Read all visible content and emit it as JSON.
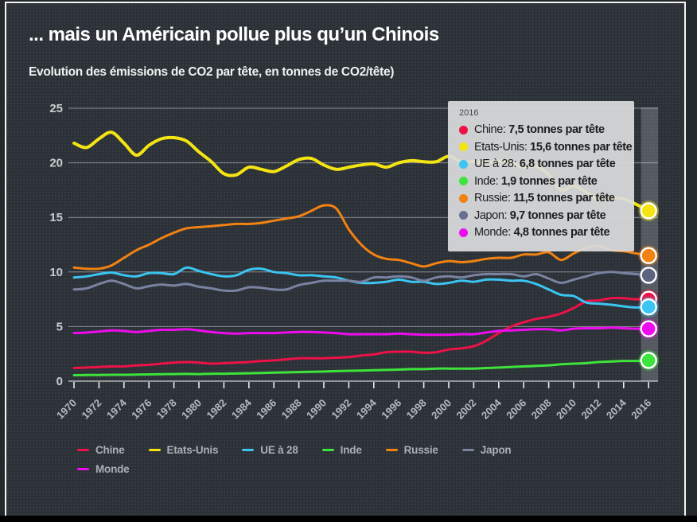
{
  "header": {
    "title": "... mais un Américain pollue plus qu’un Chinois",
    "subtitle": "Evolution des émissions de CO2 par tête, en tonnes de CO2/tête)"
  },
  "tooltip": {
    "year": "2016",
    "rows": [
      {
        "label": "Chine",
        "value": "7,5 tonnes par tête",
        "color": "#ed1247"
      },
      {
        "label": "Etats-Unis",
        "value": "15,6 tonnes par tête",
        "color": "#f4e412"
      },
      {
        "label": "UE à 28",
        "value": "6,8 tonnes par tête",
        "color": "#3ac5f2"
      },
      {
        "label": "Inde",
        "value": "1,9 tonnes par tête",
        "color": "#3ee33c"
      },
      {
        "label": "Russie",
        "value": "11,5 tonnes par tête",
        "color": "#f28211"
      },
      {
        "label": "Japon",
        "value": "9,7 tonnes par tête",
        "color": "#677091"
      },
      {
        "label": "Monde",
        "value": "4,8 tonnes par tête",
        "color": "#ee0cee"
      }
    ]
  },
  "legend": {
    "items": [
      {
        "label": "Chine",
        "color": "#ed1247"
      },
      {
        "label": "Etats-Unis",
        "color": "#f4e412"
      },
      {
        "label": "UE à 28",
        "color": "#3ac5f2"
      },
      {
        "label": "Inde",
        "color": "#3ee33c"
      },
      {
        "label": "Russie",
        "color": "#f28211"
      },
      {
        "label": "Japon",
        "color": "#7a82a2"
      },
      {
        "label": "Monde",
        "color": "#ee0cee"
      }
    ]
  },
  "chart_data": {
    "type": "line",
    "title": "Evolution des émissions de CO2 par tête",
    "xlabel": "",
    "ylabel": "tonnes de CO2/tête",
    "x_min": 1970,
    "x_max": 2016,
    "x_ticks": [
      1970,
      1972,
      1974,
      1976,
      1978,
      1980,
      1982,
      1984,
      1986,
      1988,
      1990,
      1992,
      1994,
      1996,
      1998,
      2000,
      2002,
      2004,
      2006,
      2008,
      2010,
      2012,
      2014,
      2016
    ],
    "y_ticks": [
      0,
      5,
      10,
      15,
      20,
      25
    ],
    "ylim": [
      0,
      25
    ],
    "grid": true,
    "legend_position": "bottom",
    "highlight_year": 2016,
    "series": [
      {
        "name": "Chine",
        "color": "#ed1247",
        "width": 3,
        "values": [
          1.2,
          1.25,
          1.3,
          1.35,
          1.35,
          1.45,
          1.5,
          1.6,
          1.7,
          1.75,
          1.7,
          1.6,
          1.65,
          1.7,
          1.75,
          1.85,
          1.9,
          2.0,
          2.1,
          2.1,
          2.1,
          2.15,
          2.2,
          2.35,
          2.45,
          2.65,
          2.7,
          2.7,
          2.6,
          2.65,
          2.9,
          3.0,
          3.2,
          3.7,
          4.4,
          5.0,
          5.4,
          5.7,
          5.9,
          6.2,
          6.7,
          7.3,
          7.4,
          7.6,
          7.6,
          7.5,
          7.5
        ]
      },
      {
        "name": "Etats-Unis",
        "color": "#f4e412",
        "width": 4,
        "values": [
          21.8,
          21.4,
          22.2,
          22.8,
          21.8,
          20.7,
          21.6,
          22.2,
          22.3,
          22.0,
          21.0,
          20.1,
          19.0,
          18.9,
          19.6,
          19.4,
          19.2,
          19.7,
          20.3,
          20.4,
          19.8,
          19.4,
          19.6,
          19.8,
          19.9,
          19.6,
          20.0,
          20.2,
          20.1,
          20.1,
          20.6,
          20.1,
          20.1,
          20.0,
          20.2,
          20.0,
          19.6,
          19.7,
          18.9,
          17.5,
          17.9,
          17.3,
          16.6,
          16.8,
          16.7,
          16.2,
          15.6
        ]
      },
      {
        "name": "UE à 28",
        "color": "#3ac5f2",
        "width": 3,
        "values": [
          9.5,
          9.6,
          9.8,
          9.95,
          9.7,
          9.6,
          9.9,
          9.9,
          9.8,
          10.4,
          10.1,
          9.8,
          9.6,
          9.7,
          10.2,
          10.3,
          10.0,
          9.9,
          9.7,
          9.7,
          9.6,
          9.5,
          9.2,
          9.0,
          9.0,
          9.1,
          9.3,
          9.1,
          9.1,
          8.9,
          9.0,
          9.2,
          9.1,
          9.3,
          9.3,
          9.2,
          9.2,
          8.9,
          8.4,
          7.9,
          7.8,
          7.2,
          7.1,
          7.0,
          6.85,
          6.75,
          6.8
        ]
      },
      {
        "name": "Inde",
        "color": "#3ee33c",
        "width": 3,
        "values": [
          0.55,
          0.56,
          0.57,
          0.58,
          0.58,
          0.6,
          0.62,
          0.64,
          0.65,
          0.66,
          0.65,
          0.68,
          0.68,
          0.7,
          0.72,
          0.75,
          0.78,
          0.8,
          0.83,
          0.86,
          0.88,
          0.92,
          0.95,
          0.97,
          1.0,
          1.03,
          1.06,
          1.1,
          1.1,
          1.15,
          1.15,
          1.15,
          1.15,
          1.2,
          1.25,
          1.3,
          1.35,
          1.4,
          1.45,
          1.55,
          1.6,
          1.65,
          1.75,
          1.8,
          1.85,
          1.85,
          1.9
        ]
      },
      {
        "name": "Russie",
        "color": "#f28211",
        "width": 3,
        "values": [
          10.4,
          10.3,
          10.3,
          10.6,
          11.3,
          12.0,
          12.5,
          13.1,
          13.6,
          14.0,
          14.1,
          14.2,
          14.3,
          14.4,
          14.4,
          14.5,
          14.7,
          14.9,
          15.1,
          15.6,
          16.1,
          15.8,
          13.9,
          12.5,
          11.6,
          11.2,
          11.1,
          10.8,
          10.5,
          10.8,
          11.0,
          10.9,
          11.0,
          11.2,
          11.3,
          11.3,
          11.6,
          11.6,
          11.8,
          11.1,
          11.7,
          12.2,
          12.4,
          12.0,
          11.9,
          11.7,
          11.5
        ]
      },
      {
        "name": "Japon",
        "color": "#7a82a2",
        "width": 3,
        "values": [
          8.4,
          8.5,
          8.9,
          9.2,
          8.9,
          8.5,
          8.7,
          8.85,
          8.75,
          8.9,
          8.65,
          8.5,
          8.3,
          8.3,
          8.6,
          8.55,
          8.4,
          8.4,
          8.8,
          9.0,
          9.2,
          9.2,
          9.2,
          9.1,
          9.5,
          9.5,
          9.6,
          9.5,
          9.2,
          9.5,
          9.6,
          9.5,
          9.7,
          9.8,
          9.8,
          9.8,
          9.6,
          9.8,
          9.4,
          9.0,
          9.3,
          9.6,
          9.9,
          10.0,
          9.9,
          9.8,
          9.7
        ]
      },
      {
        "name": "Monde",
        "color": "#ee0cee",
        "width": 3,
        "values": [
          4.4,
          4.45,
          4.55,
          4.65,
          4.6,
          4.5,
          4.6,
          4.7,
          4.7,
          4.75,
          4.65,
          4.5,
          4.4,
          4.35,
          4.4,
          4.4,
          4.4,
          4.45,
          4.5,
          4.5,
          4.45,
          4.4,
          4.3,
          4.3,
          4.3,
          4.3,
          4.35,
          4.3,
          4.25,
          4.25,
          4.25,
          4.3,
          4.3,
          4.45,
          4.6,
          4.65,
          4.7,
          4.75,
          4.75,
          4.65,
          4.8,
          4.85,
          4.85,
          4.9,
          4.85,
          4.8,
          4.8
        ]
      }
    ],
    "end_dots": [
      {
        "name": "Etats-Unis",
        "color": "#f4e412"
      },
      {
        "name": "Russie",
        "color": "#f28211"
      },
      {
        "name": "Japon",
        "color": "#5d6480"
      },
      {
        "name": "Chine",
        "color": "#ed1247"
      },
      {
        "name": "UE à 28",
        "color": "#3ac5f2"
      },
      {
        "name": "Monde",
        "color": "#ee0cee"
      },
      {
        "name": "Inde",
        "color": "#3ee33c"
      }
    ]
  }
}
